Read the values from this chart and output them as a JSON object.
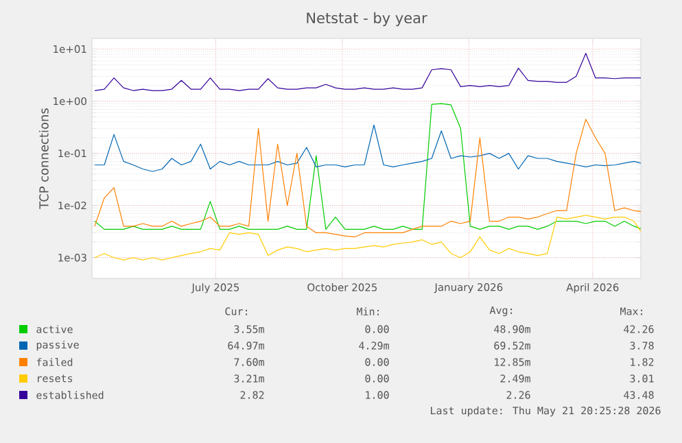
{
  "chart_data": {
    "type": "line",
    "title": "Netstat - by year",
    "ylabel": "TCP connections",
    "x": [
      "2025-04-19",
      "2025-04-26",
      "2025-05-03",
      "2025-05-10",
      "2025-05-17",
      "2025-05-24",
      "2025-05-31",
      "2025-06-07",
      "2025-06-14",
      "2025-06-21",
      "2025-06-28",
      "2025-07-05",
      "2025-07-12",
      "2025-07-19",
      "2025-07-26",
      "2025-08-02",
      "2025-08-09",
      "2025-08-16",
      "2025-08-23",
      "2025-08-30",
      "2025-09-06",
      "2025-09-13",
      "2025-09-20",
      "2025-09-27",
      "2025-10-04",
      "2025-10-11",
      "2025-10-18",
      "2025-10-25",
      "2025-11-01",
      "2025-11-08",
      "2025-11-15",
      "2025-11-22",
      "2025-11-29",
      "2025-12-06",
      "2025-12-13",
      "2025-12-20",
      "2025-12-27",
      "2026-01-03",
      "2026-01-10",
      "2026-01-17",
      "2026-01-24",
      "2026-01-31",
      "2026-02-07",
      "2026-02-14",
      "2026-02-21",
      "2026-02-28",
      "2026-03-07",
      "2026-03-14",
      "2026-03-21",
      "2026-03-28",
      "2026-04-04",
      "2026-04-11",
      "2026-04-18",
      "2026-04-25",
      "2026-05-02",
      "2026-05-09",
      "2026-05-16",
      "2026-05-21"
    ],
    "series": [
      {
        "name": "active",
        "color": "#00cc00",
        "values": [
          0.005,
          0.0035,
          0.0035,
          0.0035,
          0.004,
          0.0035,
          0.0035,
          0.0035,
          0.004,
          0.0035,
          0.0035,
          0.0035,
          0.012,
          0.0035,
          0.0035,
          0.004,
          0.0035,
          0.0035,
          0.0035,
          0.0035,
          0.004,
          0.0035,
          0.0035,
          0.09,
          0.0035,
          0.006,
          0.0035,
          0.0035,
          0.0035,
          0.004,
          0.0035,
          0.0035,
          0.004,
          0.0035,
          0.0035,
          0.87,
          0.9,
          0.85,
          0.3,
          0.004,
          0.0035,
          0.004,
          0.004,
          0.0035,
          0.004,
          0.004,
          0.0035,
          0.004,
          0.005,
          0.005,
          0.005,
          0.0045,
          0.005,
          0.005,
          0.004,
          0.005,
          0.004,
          0.0036
        ]
      },
      {
        "name": "passive",
        "color": "#0066b3",
        "values": [
          0.06,
          0.06,
          0.23,
          0.07,
          0.06,
          0.05,
          0.045,
          0.05,
          0.08,
          0.06,
          0.07,
          0.15,
          0.05,
          0.07,
          0.06,
          0.07,
          0.06,
          0.06,
          0.06,
          0.07,
          0.06,
          0.065,
          0.13,
          0.055,
          0.06,
          0.06,
          0.055,
          0.06,
          0.06,
          0.35,
          0.06,
          0.055,
          0.06,
          0.065,
          0.07,
          0.08,
          0.27,
          0.08,
          0.09,
          0.085,
          0.09,
          0.1,
          0.08,
          0.1,
          0.05,
          0.09,
          0.08,
          0.08,
          0.07,
          0.065,
          0.06,
          0.055,
          0.06,
          0.058,
          0.06,
          0.065,
          0.07,
          0.065
        ]
      },
      {
        "name": "failed",
        "color": "#ff8000",
        "values": [
          0.004,
          0.014,
          0.022,
          0.004,
          0.004,
          0.0045,
          0.004,
          0.004,
          0.005,
          0.004,
          0.0045,
          0.005,
          0.006,
          0.004,
          0.004,
          0.0045,
          0.004,
          0.3,
          0.005,
          0.15,
          0.01,
          0.1,
          0.004,
          0.003,
          0.003,
          0.0028,
          0.0026,
          0.0025,
          0.003,
          0.003,
          0.003,
          0.003,
          0.003,
          0.0035,
          0.004,
          0.004,
          0.004,
          0.005,
          0.0045,
          0.005,
          0.2,
          0.005,
          0.005,
          0.006,
          0.006,
          0.0055,
          0.006,
          0.007,
          0.008,
          0.008,
          0.1,
          0.45,
          0.2,
          0.1,
          0.008,
          0.009,
          0.008,
          0.0076
        ]
      },
      {
        "name": "resets",
        "color": "#ffcc00",
        "values": [
          0.001,
          0.0012,
          0.001,
          0.0009,
          0.001,
          0.0009,
          0.001,
          0.0009,
          0.001,
          0.0011,
          0.0012,
          0.0013,
          0.0015,
          0.0014,
          0.003,
          0.0028,
          0.003,
          0.0028,
          0.0011,
          0.0014,
          0.0016,
          0.0015,
          0.0013,
          0.0014,
          0.0015,
          0.0014,
          0.0015,
          0.0015,
          0.0016,
          0.0017,
          0.0016,
          0.0018,
          0.0019,
          0.002,
          0.0022,
          0.0018,
          0.002,
          0.0012,
          0.001,
          0.0013,
          0.0025,
          0.0014,
          0.0012,
          0.0015,
          0.0013,
          0.0012,
          0.0011,
          0.0012,
          0.006,
          0.0055,
          0.006,
          0.0065,
          0.006,
          0.0055,
          0.006,
          0.006,
          0.005,
          0.0032
        ]
      },
      {
        "name": "established",
        "color": "#330099",
        "values": [
          1.6,
          1.7,
          2.8,
          1.8,
          1.6,
          1.7,
          1.6,
          1.6,
          1.7,
          2.5,
          1.7,
          1.7,
          2.8,
          1.7,
          1.7,
          1.6,
          1.7,
          1.7,
          2.7,
          1.8,
          1.7,
          1.7,
          1.8,
          1.8,
          2.1,
          1.8,
          1.7,
          1.7,
          1.8,
          1.7,
          1.7,
          1.8,
          1.7,
          1.7,
          1.8,
          4.0,
          4.2,
          4.0,
          1.9,
          2.0,
          1.9,
          2.0,
          1.9,
          2.0,
          4.3,
          2.5,
          2.4,
          2.4,
          2.3,
          2.3,
          3.0,
          8.3,
          2.8,
          2.8,
          2.7,
          2.8,
          2.8,
          2.8
        ]
      }
    ],
    "xlim": [
      "2025-04-17",
      "2026-05-21"
    ],
    "xticks": [
      {
        "value": "2025-07-16",
        "label": "July 2025"
      },
      {
        "value": "2025-10-16",
        "label": "October 2025"
      },
      {
        "value": "2026-01-16",
        "label": "January 2026"
      },
      {
        "value": "2026-04-16",
        "label": "April 2026"
      }
    ],
    "ylim": [
      0.0004,
      16
    ],
    "yticks": [
      {
        "value": 0.001,
        "label": "1e-03"
      },
      {
        "value": 0.01,
        "label": "1e-02"
      },
      {
        "value": 0.1,
        "label": "1e-01"
      },
      {
        "value": 1,
        "label": "1e+00"
      },
      {
        "value": 10,
        "label": "1e+01"
      }
    ],
    "log": "y",
    "grid": true,
    "legend": "bottom",
    "marker": "none",
    "line_style": "solid",
    "annotations": [
      "Cur:",
      "Min:",
      "Avg:",
      "Max:",
      "3.55m",
      "0.00",
      "48.90m",
      "42.26",
      "64.97m",
      "4.29m",
      "69.52m",
      "3.78",
      "7.60m",
      "0.00",
      "12.85m",
      "1.82",
      "3.21m",
      "0.00",
      "2.49m",
      "3.01",
      "2.82",
      "1.00",
      "2.26",
      "43.48",
      "Last update: Thu May 21 20:25:28 2026"
    ]
  }
}
